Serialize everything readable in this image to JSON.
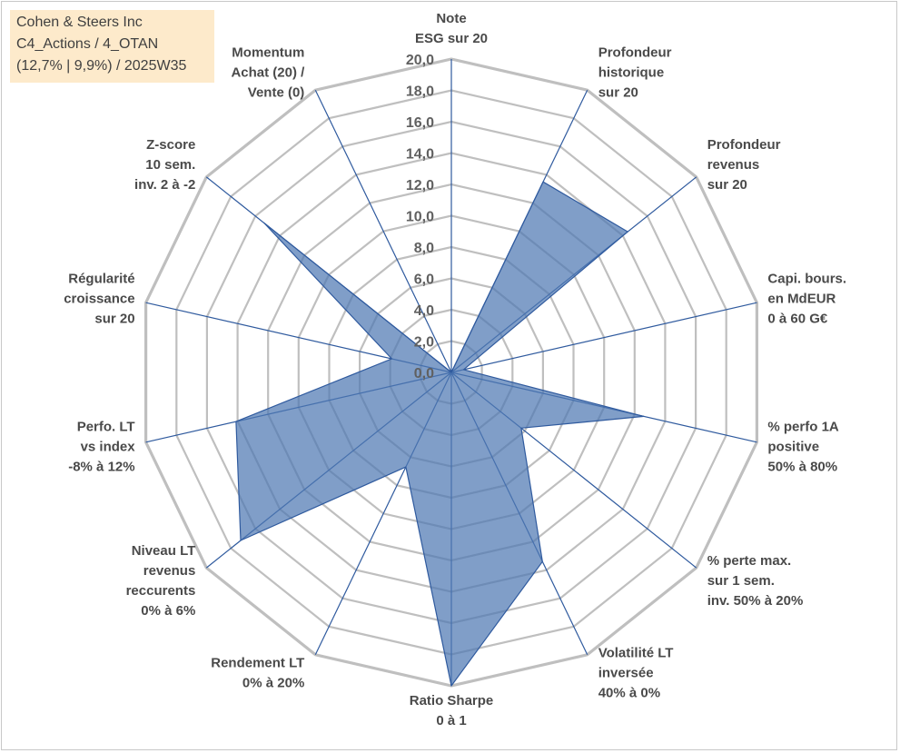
{
  "info_box": {
    "line1": "Cohen & Steers Inc",
    "line2": "C4_Actions / 4_OTAN",
    "line3": "(12,7% | 9,9%) / 2025W35"
  },
  "colors": {
    "ring": "#bfbfbf",
    "spoke": "#2f5a9e",
    "fill": "#4f79b3",
    "fill_opacity": 0.72,
    "info_bg": "#fdeacb"
  },
  "chart_data": {
    "type": "radar",
    "title": "",
    "rmin": 0,
    "rmax": 20,
    "tick_step": 2,
    "tick_labels": [
      "0,0",
      "2,0",
      "4,0",
      "6,0",
      "8,0",
      "10,0",
      "12,0",
      "14,0",
      "16,0",
      "18,0",
      "20,0"
    ],
    "axes": [
      [
        "Note",
        "ESG sur 20"
      ],
      [
        "Profondeur",
        "historique",
        "sur 20"
      ],
      [
        "Profondeur",
        "revenus",
        "sur 20"
      ],
      [
        "Capi. bours.",
        "en MdEUR",
        "0 à 60 G€"
      ],
      [
        "% perfo 1A",
        "positive",
        "50% à 80%"
      ],
      [
        "% perte max.",
        "sur 1 sem.",
        "inv. 50% à 20%"
      ],
      [
        "Volatilité LT",
        "inversée",
        "40% à 0%"
      ],
      [
        "Ratio Sharpe",
        "0 à 1"
      ],
      [
        "Rendement LT",
        "0% à 20%"
      ],
      [
        "Niveau LT",
        "revenus",
        "reccurents",
        "0% à 6%"
      ],
      [
        "Perfo. LT",
        "vs index",
        "-8% à 12%"
      ],
      [
        "Régularité",
        "croissance",
        "sur 20"
      ],
      [
        "Z-score",
        "10 sem.",
        "inv. 2 à -2"
      ],
      [
        "Momentum",
        "Achat (20) /",
        "Vente (0)"
      ]
    ],
    "series": [
      {
        "values": [
          0,
          13.5,
          14.4,
          0.8,
          12.6,
          5.7,
          13.4,
          20,
          6.7,
          17.2,
          14.1,
          3.9,
          15.3,
          0
        ]
      }
    ]
  }
}
